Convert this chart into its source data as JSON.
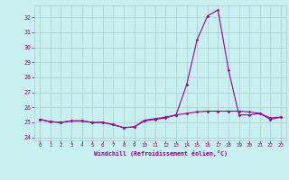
{
  "x": [
    0,
    1,
    2,
    3,
    4,
    5,
    6,
    7,
    8,
    9,
    10,
    11,
    12,
    13,
    14,
    15,
    16,
    17,
    18,
    19,
    20,
    21,
    22,
    23
  ],
  "line1": [
    25.2,
    25.05,
    25.0,
    25.1,
    25.1,
    25.0,
    25.0,
    24.85,
    24.65,
    24.7,
    25.1,
    25.2,
    25.3,
    25.5,
    27.5,
    30.5,
    32.1,
    32.5,
    28.5,
    25.5,
    25.5,
    25.6,
    25.2,
    25.35
  ],
  "line3": [
    25.2,
    25.05,
    25.0,
    25.1,
    25.1,
    25.0,
    25.0,
    24.85,
    24.65,
    24.7,
    25.15,
    25.25,
    25.35,
    25.5,
    25.6,
    25.7,
    25.75,
    25.75,
    25.75,
    25.75,
    25.7,
    25.6,
    25.3,
    25.35
  ],
  "line_color": "#990099",
  "bg_color": "#c8f0f0",
  "grid_color": "#aacccc",
  "xlabel": "Windchill (Refroidissement éolien,°C)",
  "xlabel_color": "#880088",
  "ylabel_color": "#880088",
  "ylim": [
    23.8,
    32.8
  ],
  "xlim": [
    -0.5,
    23.5
  ],
  "yticks": [
    24,
    25,
    26,
    27,
    28,
    29,
    30,
    31,
    32
  ],
  "xticks": [
    0,
    1,
    2,
    3,
    4,
    5,
    6,
    7,
    8,
    9,
    10,
    11,
    12,
    13,
    14,
    15,
    16,
    17,
    18,
    19,
    20,
    21,
    22,
    23
  ]
}
